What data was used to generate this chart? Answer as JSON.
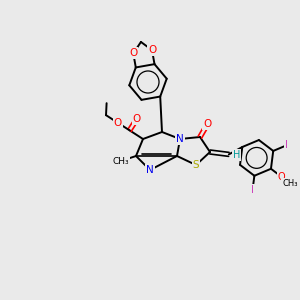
{
  "bg_color": "#EAEAEA",
  "bond_color": "#000000",
  "figsize": [
    3.0,
    3.0
  ],
  "dpi": 100,
  "colors": {
    "N": "#0000EE",
    "O": "#FF0000",
    "S": "#AAAA00",
    "I": "#CC44BB",
    "H": "#009999",
    "C": "#000000"
  }
}
